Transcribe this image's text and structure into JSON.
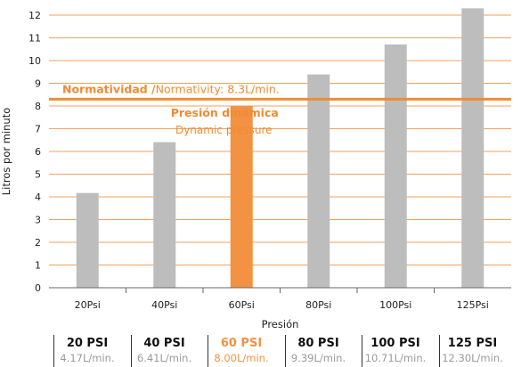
{
  "chart_data": {
    "type": "bar",
    "title": "",
    "xlabel": "Presión",
    "ylabel": "Litros por minuto",
    "ylim": [
      0,
      12
    ],
    "yticks": [
      0,
      1,
      2,
      3,
      4,
      5,
      6,
      7,
      8,
      9,
      10,
      11,
      12
    ],
    "categories": [
      "20Psi",
      "40Psi",
      "60Psi",
      "80Psi",
      "100Psi",
      "125Psi"
    ],
    "values": [
      4.17,
      6.41,
      8.0,
      9.39,
      10.71,
      12.3
    ],
    "highlight_index": 2,
    "grid": true,
    "colors": {
      "bar": "#bdbdbd",
      "highlight": "#f39242",
      "grid": "#f4a15b",
      "reference_line": "#f08b32",
      "text": "#222222"
    },
    "reference_line": {
      "value": 8.3,
      "label_bold": "Normatividad /",
      "label": "Normativity: 8.3L/min."
    },
    "annotation": {
      "line1": "Presión dinámica",
      "line2": "Dynamic pressure"
    }
  },
  "summary": [
    {
      "psi": "20 PSI",
      "flow": "4.17L/min."
    },
    {
      "psi": "40 PSI",
      "flow": "6.41L/min."
    },
    {
      "psi": "60 PSI",
      "flow": "8.00L/min."
    },
    {
      "psi": "80 PSI",
      "flow": "9.39L/min."
    },
    {
      "psi": "100 PSI",
      "flow": "10.71L/min."
    },
    {
      "psi": "125 PSI",
      "flow": "12.30L/min."
    }
  ]
}
